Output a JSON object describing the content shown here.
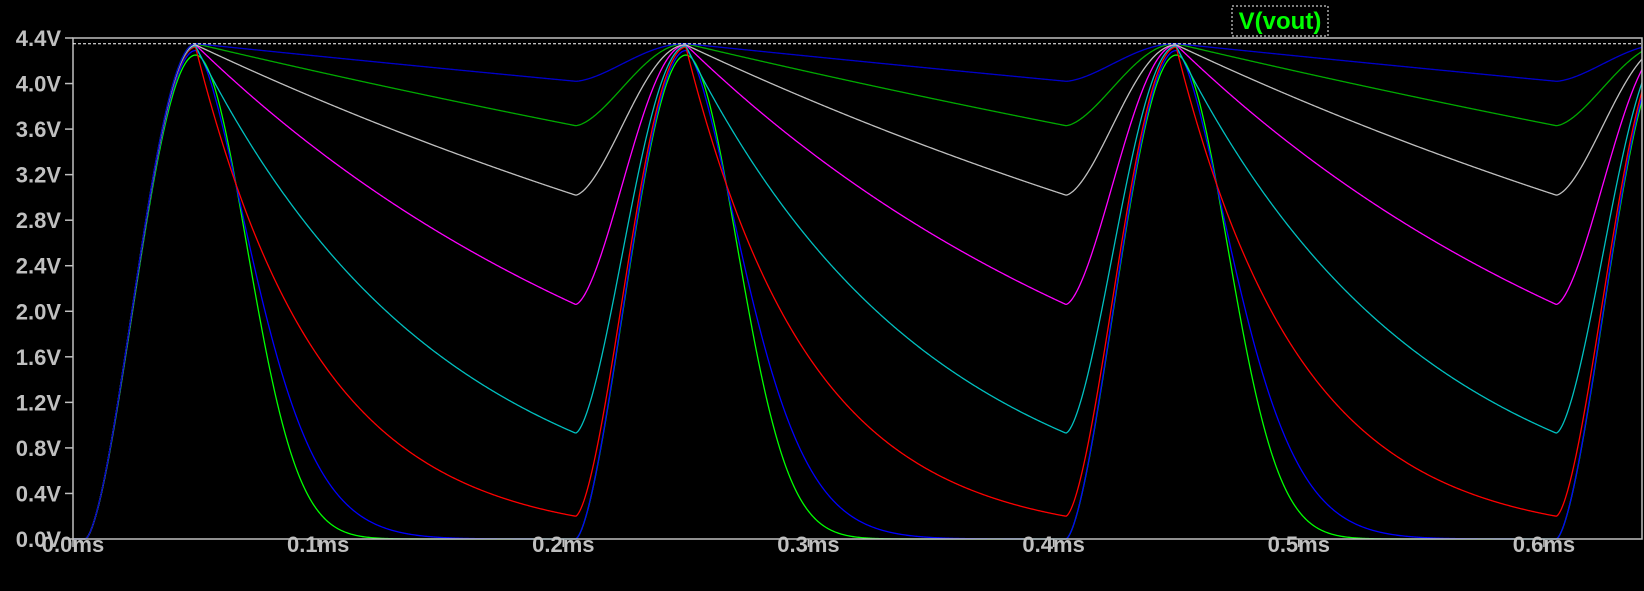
{
  "chart_data": {
    "type": "line",
    "title": "",
    "xlabel": "",
    "ylabel": "",
    "legend": [
      {
        "name": "V(vout)",
        "color": "#00ff00",
        "position": "top-right"
      }
    ],
    "x_ticks": [
      "0.0ms",
      "0.1ms",
      "0.2ms",
      "0.3ms",
      "0.4ms",
      "0.5ms",
      "0.6ms"
    ],
    "y_ticks": [
      "0.0V",
      "0.4V",
      "0.8V",
      "1.2V",
      "1.6V",
      "2.0V",
      "2.4V",
      "2.8V",
      "3.2V",
      "3.6V",
      "4.0V",
      "4.4V"
    ],
    "xlim_ms": [
      0.0,
      0.64
    ],
    "ylim_V": [
      0.0,
      4.4
    ],
    "x_unit": "ms",
    "y_unit": "V",
    "grid": false,
    "background_color": "#000000",
    "axis_color": "#c0c0c0",
    "reference_level_V": 4.35,
    "waveform": {
      "period_ms": 0.2,
      "start_ms": 0.005,
      "peak_ms": 0.05,
      "peak_V": 4.35
    },
    "series": [
      {
        "color": "#00ff00",
        "peak_V": 4.25,
        "start_V": 0.0,
        "end_of_cycle_V": 0.0,
        "shape": "gaussian"
      },
      {
        "color": "#0000ff",
        "peak_V": 4.29,
        "start_V": 0.0,
        "end_of_cycle_V": 0.0,
        "shape": "decay"
      },
      {
        "color": "#ff0000",
        "peak_V": 4.32,
        "start_V": 0.0,
        "end_of_cycle_V": 0.2,
        "shape": "decay"
      },
      {
        "color": "#00c0c0",
        "peak_V": 4.33,
        "start_V": 0.0,
        "end_of_cycle_V": 0.93,
        "shape": "decay"
      },
      {
        "color": "#ff00ff",
        "peak_V": 4.34,
        "start_V": 0.0,
        "end_of_cycle_V": 2.06,
        "shape": "decay"
      },
      {
        "color": "#c0c0c0",
        "peak_V": 4.34,
        "start_V": 0.0,
        "end_of_cycle_V": 3.02,
        "shape": "decay"
      },
      {
        "color": "#00aa00",
        "peak_V": 4.35,
        "start_V": 0.0,
        "end_of_cycle_V": 3.63,
        "shape": "decay"
      },
      {
        "color": "#0000cc",
        "peak_V": 4.35,
        "start_V": 0.0,
        "end_of_cycle_V": 4.02,
        "shape": "decay"
      }
    ]
  }
}
